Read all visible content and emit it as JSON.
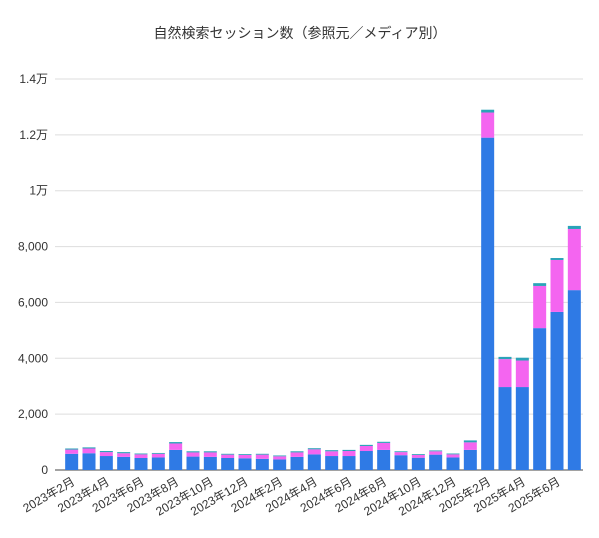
{
  "chart_data": {
    "type": "stacked_bar",
    "title": "自然検索セッション数（参照元／メディア別）",
    "categories": [
      "2023年2月",
      null,
      "2023年4月",
      null,
      "2023年6月",
      null,
      "2023年8月",
      null,
      "2023年10月",
      null,
      "2023年12月",
      null,
      "2024年2月",
      null,
      "2024年4月",
      null,
      "2024年6月",
      null,
      "2024年8月",
      null,
      "2024年10月",
      null,
      "2024年12月",
      null,
      "2025年2月",
      null,
      "2025年4月",
      null,
      "2025年6月",
      null
    ],
    "series": [
      {
        "color": "#2f7ae5",
        "values": [
          580,
          600,
          500,
          470,
          430,
          450,
          720,
          480,
          470,
          430,
          420,
          400,
          380,
          470,
          560,
          500,
          500,
          680,
          720,
          530,
          440,
          550,
          450,
          720,
          11900,
          2970,
          2970,
          5080,
          5660,
          6440
        ]
      },
      {
        "color": "#f465f0",
        "values": [
          150,
          170,
          140,
          130,
          130,
          130,
          230,
          150,
          160,
          120,
          120,
          150,
          110,
          160,
          180,
          170,
          180,
          180,
          250,
          110,
          100,
          120,
          110,
          270,
          900,
          1000,
          950,
          1510,
          1860,
          2190
        ]
      },
      {
        "color": "#2aa3b8",
        "values": [
          40,
          40,
          40,
          40,
          30,
          30,
          50,
          40,
          40,
          30,
          30,
          30,
          30,
          40,
          40,
          40,
          40,
          40,
          40,
          30,
          30,
          30,
          30,
          70,
          100,
          80,
          100,
          100,
          70,
          110
        ]
      }
    ],
    "ylim": [
      0,
      14000
    ],
    "yticks": [
      0,
      {
        "value": 2000,
        "label": "2,000"
      },
      {
        "value": 4000,
        "label": "4,000"
      },
      {
        "value": 6000,
        "label": "6,000"
      },
      {
        "value": 8000,
        "label": "8,000"
      },
      {
        "value": 10000,
        "label": "1万"
      },
      {
        "value": 12000,
        "label": "1.2万"
      },
      {
        "value": 14000,
        "label": "1.4万"
      }
    ],
    "grid": true
  }
}
